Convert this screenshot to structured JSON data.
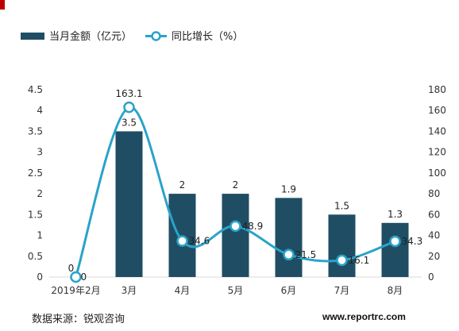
{
  "colors": {
    "bar": "#1f4e64",
    "line": "#2aa3c9",
    "marker_fill": "#ffffff",
    "grid": "#d9d9d9",
    "accent": "#c00000"
  },
  "legend": {
    "bar_label": "当月金额（亿元）",
    "line_label": "同比增长（%）"
  },
  "footer": {
    "source": "数据来源：锐观咨询",
    "site": "www.reportrc.com"
  },
  "chart_data": {
    "type": "bar",
    "categories": [
      "2019年2月",
      "3月",
      "4月",
      "5月",
      "6月",
      "7月",
      "8月"
    ],
    "series": [
      {
        "name": "当月金额（亿元）",
        "type": "bar",
        "axis": "left",
        "values": [
          0,
          3.5,
          2,
          2,
          1.9,
          1.5,
          1.3
        ],
        "labels": [
          "0",
          "3.5",
          "2",
          "2",
          "1.9",
          "1.5",
          "1.3"
        ]
      },
      {
        "name": "同比增长（%）",
        "type": "line",
        "axis": "right",
        "smooth": true,
        "values": [
          0,
          163.1,
          34.6,
          48.9,
          21.5,
          16.1,
          34.3
        ],
        "labels": [
          "0",
          "163.1",
          "34.6",
          "48.9",
          "21.5",
          "16.1",
          "34.3"
        ]
      }
    ],
    "y_left": {
      "min": 0,
      "max": 4.5,
      "step": 0.5,
      "ticks": [
        "0",
        "0.5",
        "1",
        "1.5",
        "2",
        "2.5",
        "3",
        "3.5",
        "4",
        "4.5"
      ]
    },
    "y_right": {
      "min": 0,
      "max": 180,
      "step": 20,
      "ticks": [
        "0",
        "20",
        "40",
        "60",
        "80",
        "100",
        "120",
        "140",
        "160",
        "180"
      ]
    },
    "grid": false,
    "legend_position": "top-left"
  }
}
